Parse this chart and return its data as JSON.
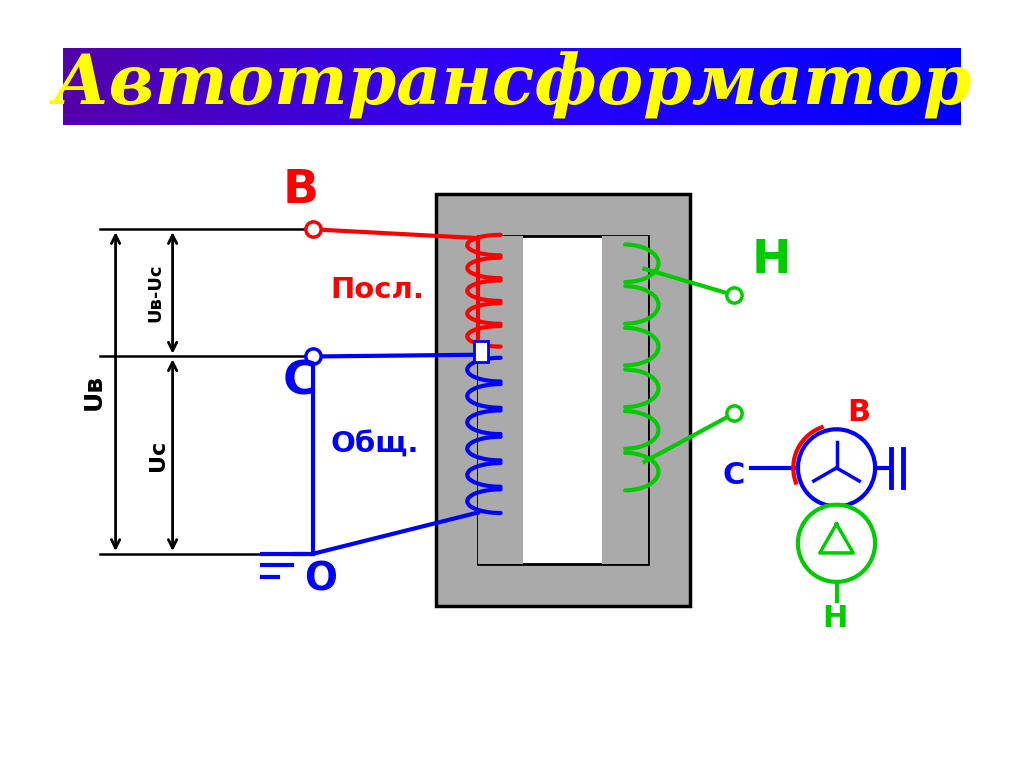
{
  "title": "Автотрансформатор",
  "title_color": "#FFFF00",
  "bg_color": "#FFFFFF",
  "red": "#FF0000",
  "blue": "#0000FF",
  "green": "#00CC00",
  "black": "#000000",
  "gray": "#AAAAAA",
  "label_B_red": "В",
  "label_C_blue": "С",
  "label_O_blue": "О",
  "label_H_green": "Н",
  "label_posl": "Посл.",
  "label_obsh": "Общ.",
  "label_Ub": "Uв",
  "label_Ubc": "Uв-Uc",
  "label_Uc": "Uc"
}
